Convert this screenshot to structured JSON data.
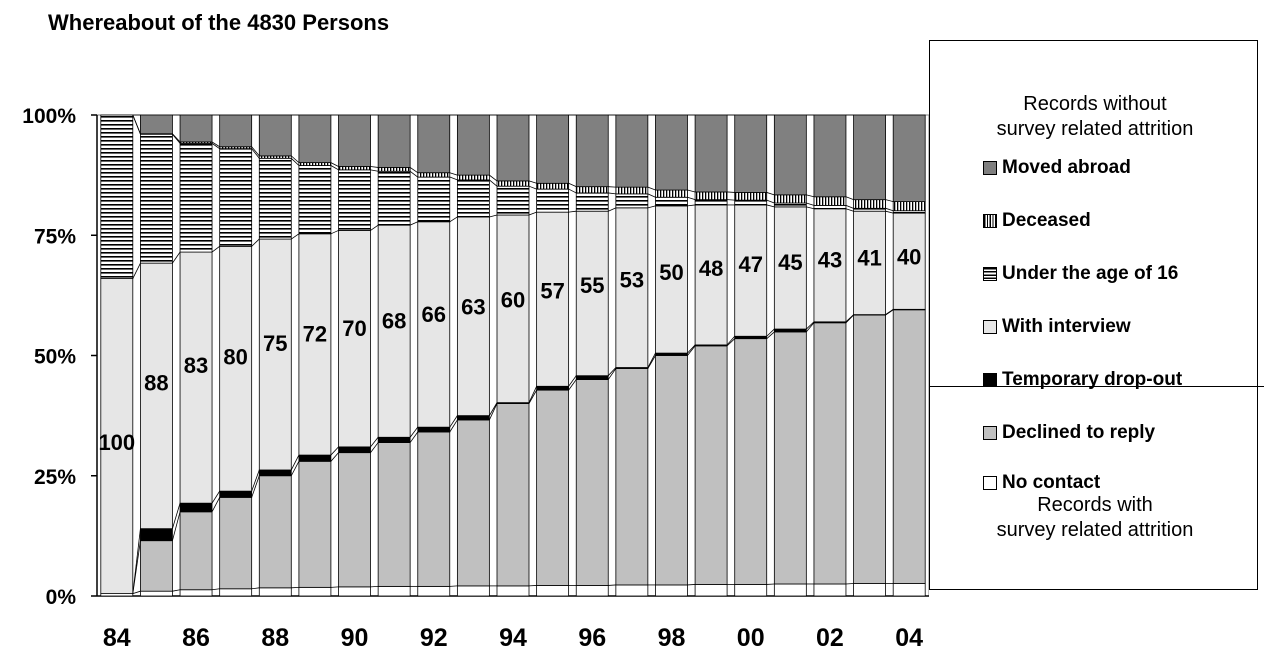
{
  "title": "Whereabout of the 4830 Persons",
  "legend_header_top": [
    "Records without",
    "survey related attrition"
  ],
  "legend_header_bottom": [
    "Records with",
    "survey related attrition"
  ],
  "legend": [
    {
      "label": "Moved abroad",
      "pattern": "solid-dark",
      "color": "#7f7f7f"
    },
    {
      "label": "Deceased",
      "pattern": "vertical-stripes",
      "color": "#000000"
    },
    {
      "label": "Under the age of 16",
      "pattern": "horizontal-stripes",
      "color": "#000000"
    },
    {
      "label": "With interview",
      "pattern": "solid-light",
      "color": "#e6e6e6"
    },
    {
      "label": "Temporary drop-out",
      "pattern": "solid-black",
      "color": "#000000"
    },
    {
      "label": "Declined to reply",
      "pattern": "solid-mid",
      "color": "#c0c0c0"
    },
    {
      "label": "No contact",
      "pattern": "solid-white",
      "color": "#ffffff"
    }
  ],
  "chart_data": {
    "type": "bar",
    "stacked": true,
    "percent": true,
    "title": "Whereabout of the 4830 Persons",
    "years": [
      1984,
      1985,
      1986,
      1987,
      1988,
      1989,
      1990,
      1991,
      1992,
      1993,
      1994,
      1995,
      1996,
      1997,
      1998,
      1999,
      2000,
      2001,
      2002,
      2003,
      2004
    ],
    "x_tick_labels": [
      "84",
      "86",
      "88",
      "90",
      "92",
      "94",
      "96",
      "98",
      "00",
      "02",
      "04"
    ],
    "y_tick_labels": [
      "0%",
      "25%",
      "50%",
      "75%",
      "100%"
    ],
    "ylim": [
      0,
      100
    ],
    "data_labels": [
      "100",
      "88",
      "83",
      "80",
      "75",
      "72",
      "70",
      "68",
      "66",
      "63",
      "60",
      "57",
      "55",
      "53",
      "50",
      "48",
      "47",
      "45",
      "43",
      "41",
      "40"
    ],
    "series": [
      {
        "name": "No contact",
        "values": [
          0.5,
          1.0,
          1.3,
          1.5,
          1.7,
          1.8,
          1.9,
          2.0,
          2.0,
          2.1,
          2.1,
          2.2,
          2.2,
          2.3,
          2.3,
          2.4,
          2.4,
          2.5,
          2.5,
          2.6,
          2.6
        ]
      },
      {
        "name": "Declined to reply",
        "values": [
          0,
          10.5,
          16.2,
          19.0,
          23.3,
          26.2,
          27.9,
          29.9,
          32.1,
          34.5,
          37.9,
          40.6,
          42.8,
          45.0,
          47.7,
          49.6,
          51.1,
          52.4,
          54.3,
          55.8,
          56.9
        ]
      },
      {
        "name": "Temporary drop-out",
        "values": [
          0,
          2.5,
          1.8,
          1.3,
          1.2,
          1.3,
          1.2,
          1.1,
          1.0,
          0.9,
          0.2,
          0.8,
          0.8,
          0.2,
          0.5,
          0.2,
          0.5,
          0.6,
          0.2,
          0.1,
          0.1
        ]
      },
      {
        "name": "With interview",
        "values": [
          65.5,
          55.2,
          52.2,
          50.9,
          48.0,
          46.0,
          45.0,
          44.1,
          42.7,
          41.3,
          39.0,
          36.2,
          34.2,
          33.2,
          30.6,
          29.1,
          27.3,
          25.4,
          23.5,
          21.5,
          20.0
        ]
      },
      {
        "name": "Under the age of 16",
        "values": [
          34.0,
          26.8,
          22.6,
          20.3,
          16.8,
          14.2,
          12.6,
          11.2,
          9.3,
          7.7,
          6.0,
          4.8,
          3.8,
          2.9,
          1.8,
          1.1,
          1.0,
          0.8,
          0.7,
          0.6,
          0.5
        ]
      },
      {
        "name": "Deceased",
        "values": [
          0,
          0.1,
          0.3,
          0.4,
          0.5,
          0.6,
          0.7,
          0.8,
          0.9,
          1.0,
          1.1,
          1.2,
          1.3,
          1.4,
          1.5,
          1.6,
          1.6,
          1.7,
          1.8,
          1.8,
          1.9
        ]
      },
      {
        "name": "Moved abroad",
        "values": [
          0,
          3.9,
          5.6,
          6.6,
          8.5,
          9.9,
          10.7,
          10.9,
          12.0,
          12.5,
          13.7,
          14.2,
          14.9,
          15.0,
          15.6,
          16.0,
          16.1,
          16.6,
          17.0,
          17.6,
          18.0
        ]
      }
    ]
  }
}
